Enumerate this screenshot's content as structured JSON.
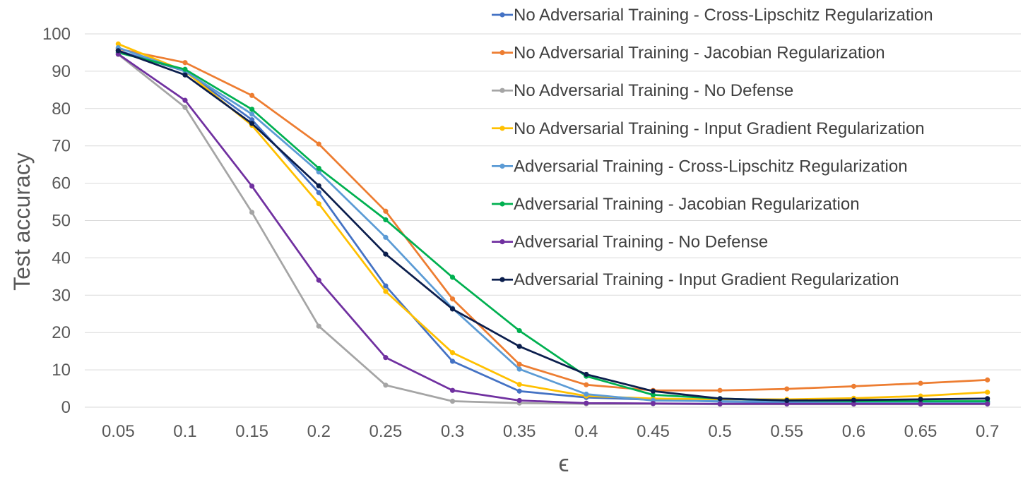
{
  "chart_data": {
    "type": "line",
    "title": "",
    "xlabel": "ϵ",
    "ylabel": "Test accuracy",
    "categories": [
      "0.05",
      "0.1",
      "0.15",
      "0.2",
      "0.25",
      "0.3",
      "0.35",
      "0.4",
      "0.45",
      "0.5",
      "0.55",
      "0.6",
      "0.65",
      "0.7"
    ],
    "ylim": [
      0,
      100
    ],
    "yticks": [
      "0",
      "10",
      "20",
      "30",
      "40",
      "50",
      "60",
      "70",
      "80",
      "90",
      "100"
    ],
    "grid": true,
    "legend_position": "top-right",
    "series": [
      {
        "name": "No Adversarial Training - Cross-Lipschitz Regularization",
        "color": "#4472c4",
        "values": [
          95.5,
          90.0,
          77.0,
          57.5,
          32.5,
          12.3,
          4.3,
          2.6,
          2.0,
          1.5,
          1.3,
          1.2,
          1.2,
          1.2
        ]
      },
      {
        "name": "No Adversarial Training - Jacobian Regularization",
        "color": "#ed7d31",
        "values": [
          96.0,
          92.3,
          83.5,
          70.5,
          52.5,
          29.0,
          11.5,
          6.0,
          4.5,
          4.5,
          4.9,
          5.6,
          6.4,
          7.3
        ]
      },
      {
        "name": "No Adversarial Training - No Defense",
        "color": "#a5a5a5",
        "values": [
          94.5,
          80.3,
          52.2,
          21.7,
          5.9,
          1.6,
          1.1,
          0.9,
          0.9,
          0.8,
          0.8,
          0.8,
          0.8,
          0.8
        ]
      },
      {
        "name": "No Adversarial Training - Input Gradient Regularization",
        "color": "#ffc000",
        "values": [
          97.3,
          90.0,
          75.5,
          54.5,
          31.0,
          14.6,
          6.1,
          3.0,
          2.3,
          2.1,
          2.1,
          2.4,
          3.0,
          4.0
        ]
      },
      {
        "name": "Adversarial Training - Cross-Lipschitz Regularization",
        "color": "#5b9bd5",
        "values": [
          96.3,
          90.0,
          78.5,
          63.0,
          45.5,
          26.5,
          10.2,
          3.5,
          1.8,
          1.6,
          1.5,
          1.4,
          1.4,
          1.4
        ]
      },
      {
        "name": "Adversarial Training - Jacobian Regularization",
        "color": "#00b050",
        "values": [
          95.0,
          90.5,
          79.8,
          64.0,
          50.2,
          34.8,
          20.5,
          8.3,
          3.3,
          2.3,
          1.8,
          1.6,
          1.6,
          1.6
        ]
      },
      {
        "name": "Adversarial Training - No Defense",
        "color": "#7030a0",
        "values": [
          94.6,
          82.2,
          59.2,
          34.0,
          13.3,
          4.5,
          1.8,
          1.1,
          1.0,
          0.9,
          0.9,
          0.9,
          0.9,
          0.9
        ]
      },
      {
        "name": "Adversarial Training - Input Gradient Regularization",
        "color": "#0b1e4d",
        "values": [
          95.5,
          89.0,
          76.0,
          59.3,
          41.0,
          26.3,
          16.3,
          8.8,
          4.3,
          2.3,
          1.8,
          1.9,
          2.1,
          2.3
        ]
      }
    ]
  }
}
